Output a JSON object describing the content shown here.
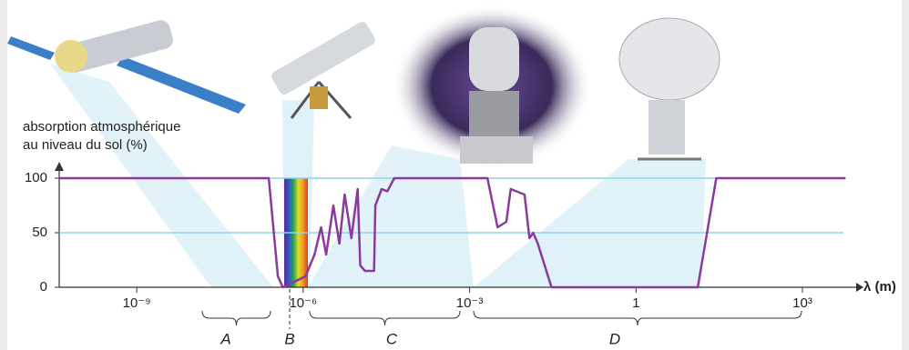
{
  "chart_data": {
    "type": "line",
    "y_label": [
      "absorption atmosphérique",
      "au niveau du sol (%)"
    ],
    "x_label": "λ (m)",
    "x": [
      4e-11,
      2.4e-07,
      3.5e-07,
      4.3e-07,
      1.1e-06,
      1.6e-06,
      2.1e-06,
      2.6e-06,
      3.5e-06,
      4.5e-06,
      5.6e-06,
      7.4e-06,
      9.6e-06,
      1.07e-05,
      1.3e-05,
      1.9e-05,
      2e-05,
      2.6e-05,
      3.3e-05,
      4.4e-05,
      0.0021,
      0.0032,
      0.0046,
      0.0055,
      0.0098,
      0.012,
      0.014,
      0.017,
      0.03,
      13,
      28,
      6000
    ],
    "values": [
      100,
      100,
      10,
      0,
      10,
      30,
      55,
      30,
      75,
      40,
      85,
      45,
      90,
      20,
      15,
      15,
      75,
      90,
      88,
      100,
      100,
      55,
      60,
      90,
      85,
      45,
      50,
      40,
      0,
      0,
      100,
      100
    ],
    "color": "#8b3a9c",
    "xscale": "log",
    "xlim": [
      4e-11,
      8000
    ],
    "ylim": [
      0,
      100
    ],
    "xticks": [
      {
        "value": 1e-09,
        "label": "10⁻⁹"
      },
      {
        "value": 1e-06,
        "label": "10⁻⁶"
      },
      {
        "value": 0.001,
        "label": "10⁻³"
      },
      1,
      {
        "value": 1000,
        "label": "10³"
      }
    ],
    "yticks": [
      0,
      50,
      100
    ],
    "grid": true,
    "grid_color": "#8fd3ea",
    "bands": [
      "A",
      "B",
      "C",
      "D"
    ]
  }
}
